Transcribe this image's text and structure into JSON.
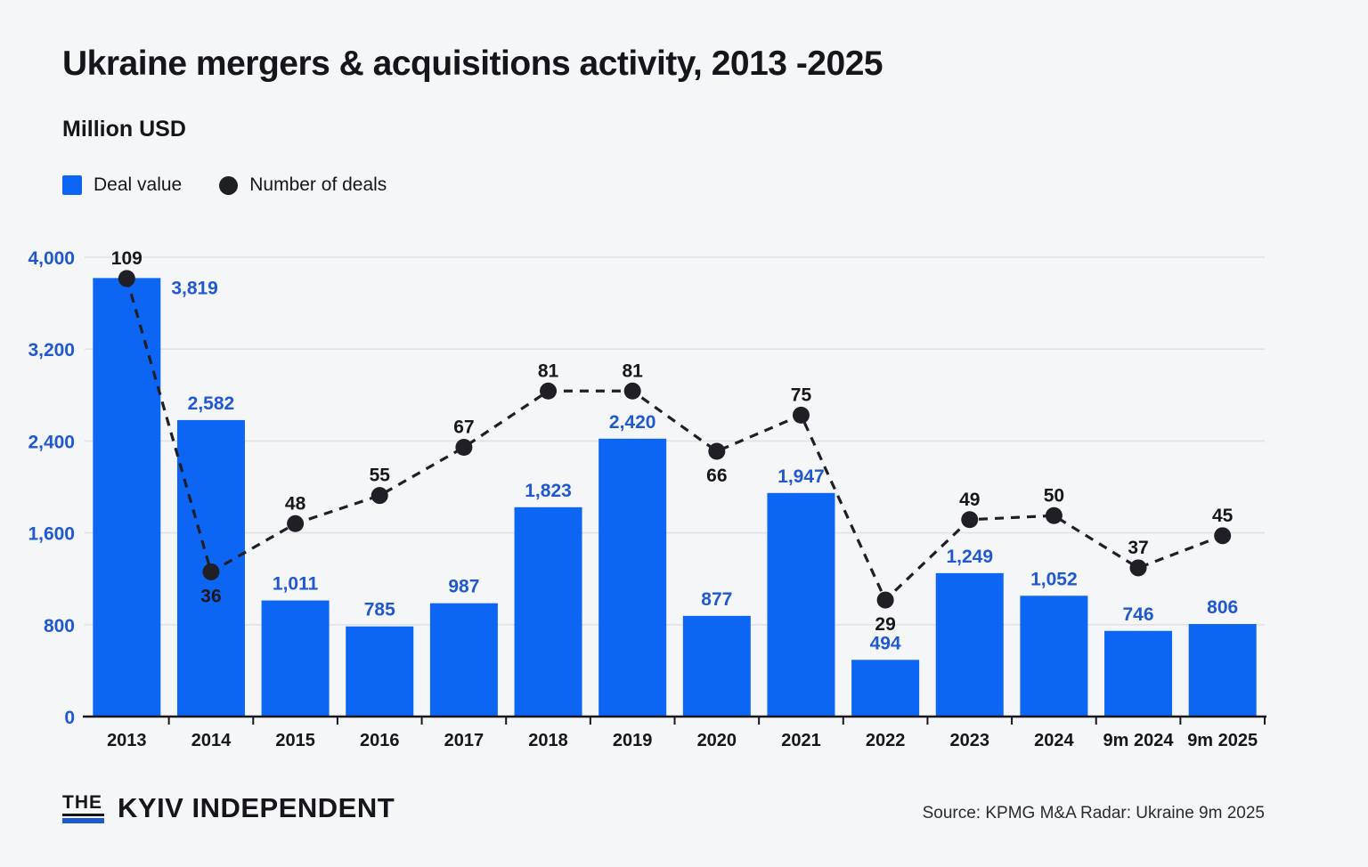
{
  "theme": {
    "background": "#f5f6f8",
    "bar_blue": "#0d65f3",
    "label_blue": "#1f58cf",
    "ink": "#211f26",
    "grid": "#e0e2e6"
  },
  "header": {
    "title": "Ukraine mergers & acquisitions activity, 2013 -2025",
    "subtitle": "Million USD"
  },
  "legend": [
    {
      "label": "Deal value",
      "swatch": "square",
      "color": "#0d65f3"
    },
    {
      "label": "Number of deals",
      "swatch": "dot",
      "color": "#211f26"
    }
  ],
  "chart_data": {
    "type": "bar+line",
    "title": "Ukraine mergers & acquisitions activity, 2013 -2025",
    "ylabel": "Million USD",
    "ylim": [
      0,
      4000
    ],
    "yticks": [
      "0",
      "800",
      "1,600",
      "2,400",
      "3,200",
      "4,000"
    ],
    "ytick_values": [
      0,
      800,
      1600,
      2400,
      3200,
      4000
    ],
    "grid": true,
    "categories": [
      "2013",
      "2014",
      "2015",
      "2016",
      "2017",
      "2018",
      "2019",
      "2020",
      "2021",
      "2022",
      "2023",
      "2024",
      "9m 2024",
      "9m 2025"
    ],
    "series": [
      {
        "name": "Deal value",
        "type": "bar",
        "unit": "million USD",
        "color": "#0d65f3",
        "values": [
          3819,
          2582,
          1011,
          785,
          987,
          1823,
          2420,
          877,
          1947,
          494,
          1249,
          1052,
          746,
          806
        ],
        "labels": [
          "3,819",
          "2,582",
          "1,011",
          "785",
          "987",
          "1,823",
          "2,420",
          "877",
          "1,947",
          "494",
          "1,249",
          "1,052",
          "746",
          "806"
        ],
        "label_color": "#1f58cf",
        "first_label_at_side": true
      },
      {
        "name": "Number of deals",
        "type": "line",
        "style": "dashed",
        "color": "#211f26",
        "values": [
          109,
          36,
          48,
          55,
          67,
          81,
          81,
          66,
          75,
          29,
          49,
          50,
          37,
          45
        ],
        "labels": [
          "109",
          "36",
          "48",
          "55",
          "67",
          "81",
          "81",
          "66",
          "75",
          "29",
          "49",
          "50",
          "37",
          "45"
        ],
        "label_below_indices": [
          1,
          7,
          9
        ],
        "plot_scale_note": "deals plotted against hidden secondary axis, 1 deal = 35 on primary axis"
      }
    ]
  },
  "footer": {
    "logo_the": "THE",
    "logo_name": "KYIV INDEPENDENT",
    "source": "Source: KPMG M&A Radar: Ukraine 9m 2025"
  }
}
